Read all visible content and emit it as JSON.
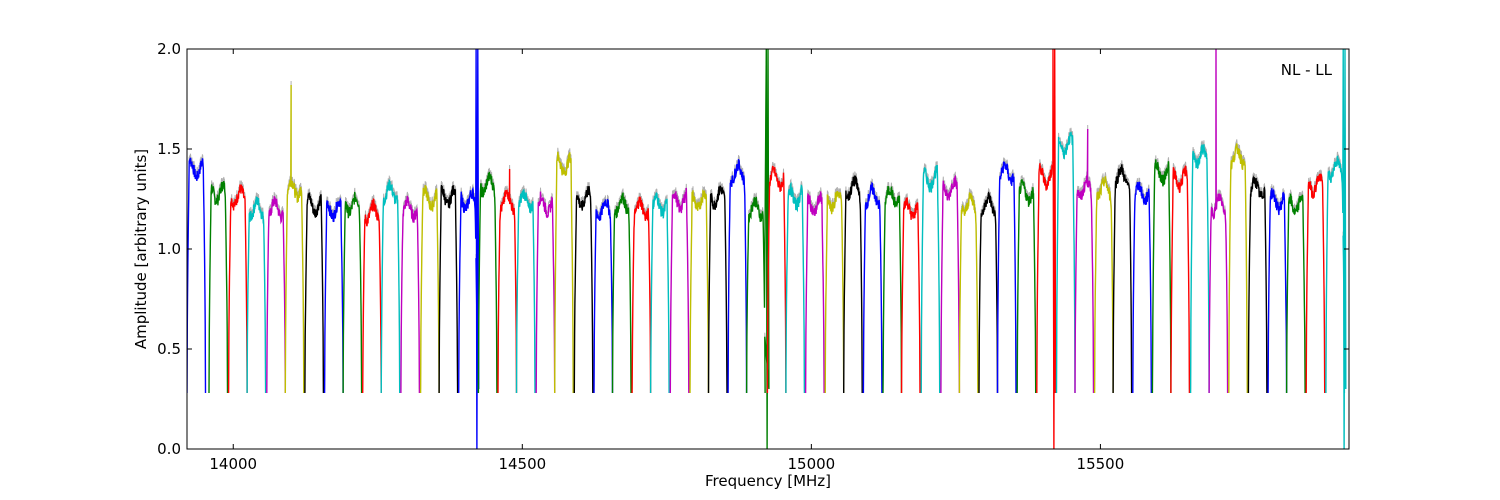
{
  "chart_data": {
    "type": "line",
    "title": "",
    "xlabel": "Frequency [MHz]",
    "ylabel": "Amplitude [arbitrary units]",
    "xlim": [
      13920,
      15930
    ],
    "ylim": [
      0.0,
      2.0
    ],
    "x_ticks": [
      14000,
      14500,
      15000,
      15500
    ],
    "y_ticks": [
      0.0,
      0.5,
      1.0,
      1.5,
      2.0
    ],
    "y_tick_labels": [
      "0.0",
      "0.5",
      "1.0",
      "1.5",
      "2.0"
    ],
    "grid": false,
    "annotation": "NL - LL",
    "envelope_color": "#b0b0b0",
    "palette": [
      "#0000ff",
      "#008000",
      "#ff0000",
      "#00bfbf",
      "#bf00bf",
      "#bfbf00",
      "#000000"
    ],
    "band_width_mhz": 32,
    "bands": [
      {
        "start": 13920,
        "peak": 1.4
      },
      {
        "start": 13958,
        "peak": 1.28
      },
      {
        "start": 13992,
        "peak": 1.26
      },
      {
        "start": 14024,
        "peak": 1.2
      },
      {
        "start": 14058,
        "peak": 1.2
      },
      {
        "start": 14090,
        "peak": 1.3,
        "spike_x": 14100,
        "spike_y": 1.82
      },
      {
        "start": 14124,
        "peak": 1.22
      },
      {
        "start": 14158,
        "peak": 1.2
      },
      {
        "start": 14190,
        "peak": 1.22
      },
      {
        "start": 14224,
        "peak": 1.18
      },
      {
        "start": 14256,
        "peak": 1.28
      },
      {
        "start": 14290,
        "peak": 1.2
      },
      {
        "start": 14324,
        "peak": 1.25
      },
      {
        "start": 14356,
        "peak": 1.26
      },
      {
        "start": 14390,
        "peak": 1.24,
        "spike_x": 14420,
        "spike_y": 2.0,
        "dip_y": 0.0
      },
      {
        "start": 14424,
        "peak": 1.32
      },
      {
        "start": 14458,
        "peak": 1.24,
        "spike_x": 14478,
        "spike_y": 1.4
      },
      {
        "start": 14490,
        "peak": 1.24
      },
      {
        "start": 14524,
        "peak": 1.22
      },
      {
        "start": 14556,
        "peak": 1.42
      },
      {
        "start": 14590,
        "peak": 1.25
      },
      {
        "start": 14624,
        "peak": 1.2
      },
      {
        "start": 14656,
        "peak": 1.22
      },
      {
        "start": 14690,
        "peak": 1.2
      },
      {
        "start": 14722,
        "peak": 1.22
      },
      {
        "start": 14756,
        "peak": 1.24
      },
      {
        "start": 14790,
        "peak": 1.24
      },
      {
        "start": 14822,
        "peak": 1.26
      },
      {
        "start": 14856,
        "peak": 1.38
      },
      {
        "start": 14888,
        "peak": 1.2,
        "spike_x": 14922,
        "spike_y": 2.0,
        "dip_y": 0.0
      },
      {
        "start": 14924,
        "peak": 1.35
      },
      {
        "start": 14956,
        "peak": 1.26
      },
      {
        "start": 14990,
        "peak": 1.22
      },
      {
        "start": 15024,
        "peak": 1.24
      },
      {
        "start": 15056,
        "peak": 1.3
      },
      {
        "start": 15090,
        "peak": 1.26
      },
      {
        "start": 15124,
        "peak": 1.26
      },
      {
        "start": 15156,
        "peak": 1.2
      },
      {
        "start": 15190,
        "peak": 1.35
      },
      {
        "start": 15224,
        "peak": 1.3
      },
      {
        "start": 15256,
        "peak": 1.22
      },
      {
        "start": 15290,
        "peak": 1.22
      },
      {
        "start": 15322,
        "peak": 1.38
      },
      {
        "start": 15356,
        "peak": 1.28
      },
      {
        "start": 15390,
        "peak": 1.36,
        "spike_x": 15418,
        "spike_y": 2.0,
        "dip_y": 0.0
      },
      {
        "start": 15424,
        "peak": 1.52
      },
      {
        "start": 15456,
        "peak": 1.3,
        "spike_x": 15478,
        "spike_y": 1.6
      },
      {
        "start": 15490,
        "peak": 1.3
      },
      {
        "start": 15522,
        "peak": 1.36
      },
      {
        "start": 15556,
        "peak": 1.28
      },
      {
        "start": 15590,
        "peak": 1.38
      },
      {
        "start": 15622,
        "peak": 1.35
      },
      {
        "start": 15656,
        "peak": 1.46
      },
      {
        "start": 15688,
        "peak": 1.22,
        "spike_x": 15700,
        "spike_y": 2.0
      },
      {
        "start": 15722,
        "peak": 1.46
      },
      {
        "start": 15756,
        "peak": 1.3
      },
      {
        "start": 15790,
        "peak": 1.24
      },
      {
        "start": 15822,
        "peak": 1.22
      },
      {
        "start": 15856,
        "peak": 1.32
      },
      {
        "start": 15890,
        "peak": 1.4,
        "spike_x": 15920,
        "spike_y": 2.0,
        "dip_y": 0.0
      }
    ]
  }
}
